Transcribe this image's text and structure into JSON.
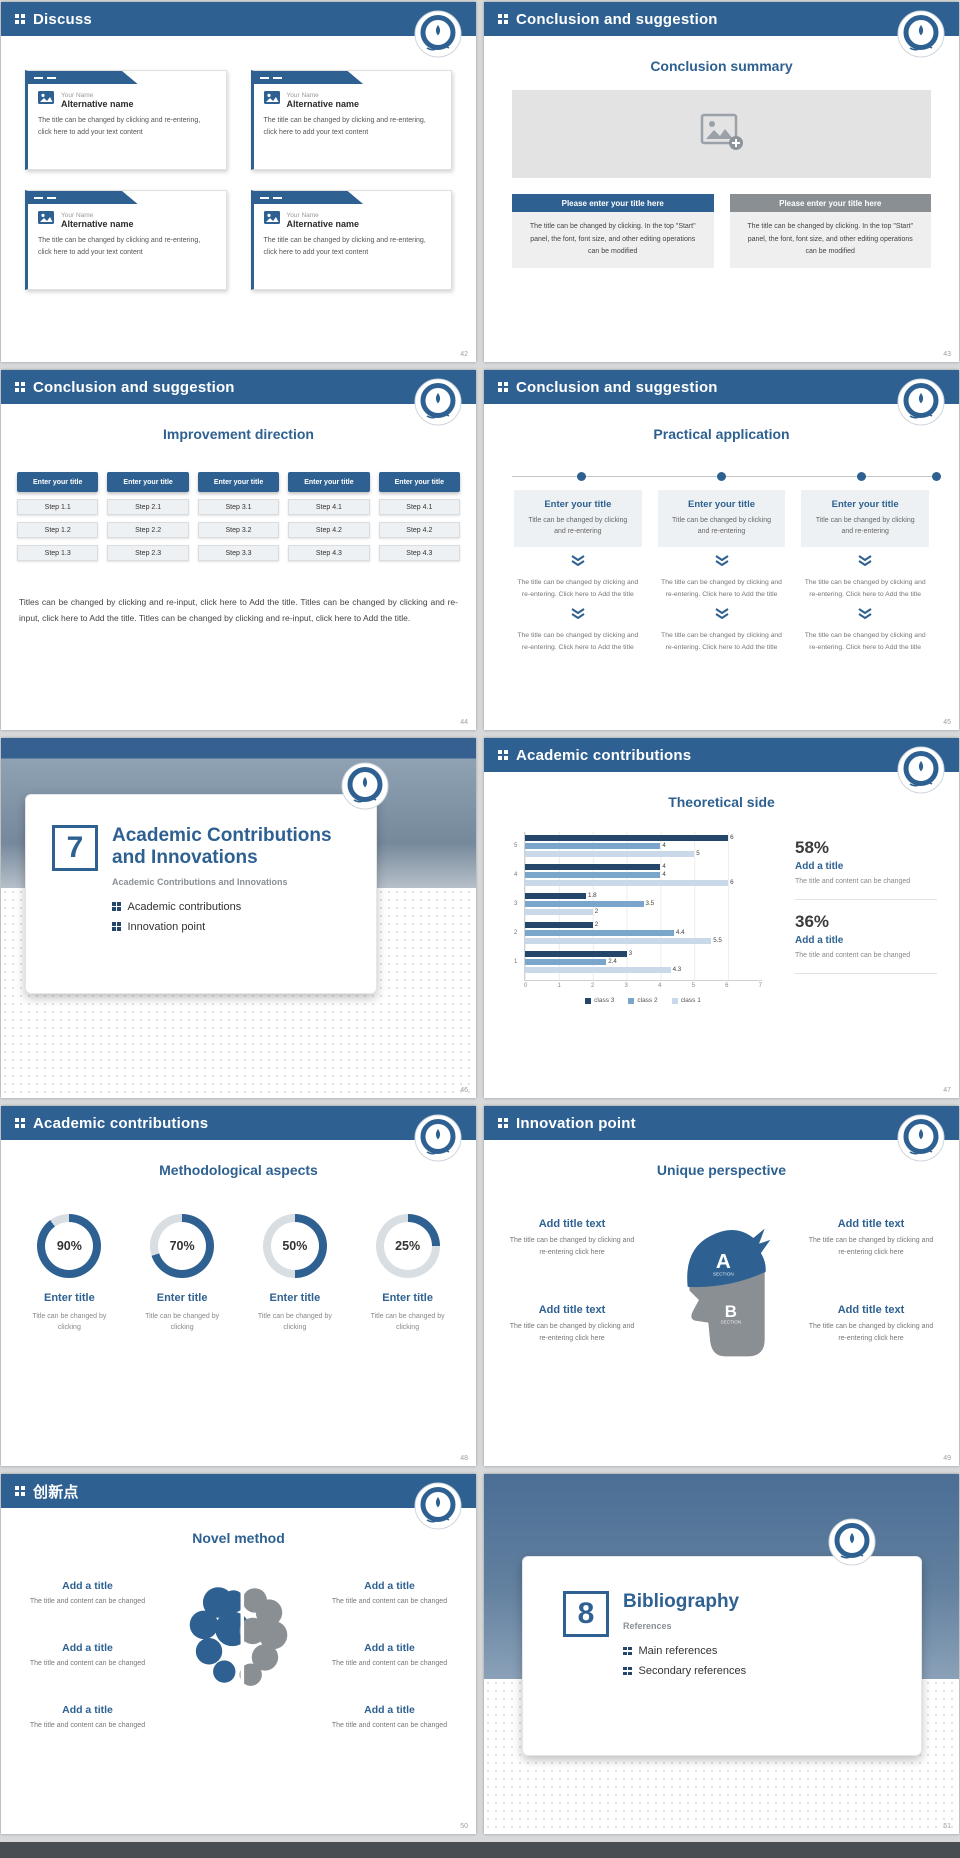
{
  "theme": {
    "primary": "#2e6191",
    "primary_dark": "#24466b",
    "gray_accent": "#8a8f94",
    "page_background": "#d7d9db"
  },
  "slides": {
    "discuss": {
      "title": "Discuss",
      "page": "42",
      "card": {
        "name_label": "Your Name",
        "name_value": "Alternative name",
        "body": "The title can be changed by clicking and re-entering, click here to add your text content"
      }
    },
    "summary": {
      "title": "Conclusion and suggestion",
      "subtitle": "Conclusion summary",
      "page": "43",
      "left_title": "Please enter your title here",
      "right_title": "Please enter your title here",
      "body": "The title can be changed by clicking. In the top \"Start\" panel, the font, font size, and other editing operations can be modified"
    },
    "improvement": {
      "title": "Conclusion and suggestion",
      "subtitle": "Improvement direction",
      "page": "44",
      "button_label": "Enter your title",
      "columns": [
        {
          "steps": [
            "Step 1.1",
            "Step 1.2",
            "Step 1.3"
          ]
        },
        {
          "steps": [
            "Step 2.1",
            "Step 2.2",
            "Step 2.3"
          ]
        },
        {
          "steps": [
            "Step 3.1",
            "Step 3.2",
            "Step 3.3"
          ]
        },
        {
          "steps": [
            "Step 4.1",
            "Step 4.2",
            "Step 4.3"
          ]
        },
        {
          "steps": [
            "Step 4.1",
            "Step 4.2",
            "Step 4.3"
          ]
        }
      ],
      "paragraph": "Titles can be changed by clicking and re-input, click here to Add the title. Titles can be changed by clicking and re-input, click here to Add the title. Titles can be changed by clicking and re-input, click here to Add the title."
    },
    "practical": {
      "title": "Conclusion and suggestion",
      "subtitle": "Practical application",
      "page": "45",
      "box_title": "Enter your title",
      "box_body": "Title can be changed by clicking and re-entering",
      "flow_text": "The title can be changed by clicking and re-entering. Click here to Add the title"
    },
    "cover7": {
      "number": "7",
      "title": "Academic Contributions and Innovations",
      "subtitle": "Academic Contributions and Innovations",
      "bullets": [
        "Academic contributions",
        "Innovation point"
      ],
      "page": "46"
    },
    "theoretical": {
      "title": "Academic contributions",
      "subtitle": "Theoretical side",
      "page": "47",
      "stats": [
        {
          "percent": "58%",
          "label": "Add a title",
          "body": "The title and content can be changed"
        },
        {
          "percent": "36%",
          "label": "Add a title",
          "body": "The title and content can be changed"
        }
      ]
    },
    "method": {
      "title": "Academic contributions",
      "subtitle": "Methodological aspects",
      "page": "48",
      "items": [
        {
          "percent": "90%",
          "value": 90,
          "label": "Enter title",
          "body": "Title can be changed by clicking"
        },
        {
          "percent": "70%",
          "value": 70,
          "label": "Enter title",
          "body": "Title can be changed by clicking"
        },
        {
          "percent": "50%",
          "value": 50,
          "label": "Enter title",
          "body": "Title can be changed by clicking"
        },
        {
          "percent": "25%",
          "value": 25,
          "label": "Enter title",
          "body": "Title can be changed by clicking"
        }
      ]
    },
    "unique": {
      "title": "Innovation point",
      "subtitle": "Unique perspective",
      "page": "49",
      "section_a": "A",
      "section_b": "B",
      "section_word": "SECTION",
      "block": {
        "label": "Add title text",
        "body": "The title can be changed by clicking and re-entering click here"
      }
    },
    "novel": {
      "title": "创新点",
      "subtitle": "Novel method",
      "page": "50",
      "block": {
        "label": "Add a title",
        "body": "The title and content can be changed"
      }
    },
    "cover8": {
      "number": "8",
      "title": "Bibliography",
      "subtitle": "References",
      "bullets": [
        "Main references",
        "Secondary references"
      ],
      "page": "51"
    }
  },
  "chart_data": [
    {
      "type": "bar",
      "title": "Theoretical side",
      "orientation": "horizontal",
      "categories": [
        "5",
        "4",
        "3",
        "2",
        "1"
      ],
      "series": [
        {
          "name": "class 3",
          "color": "#24466b",
          "values": [
            6,
            4,
            1.8,
            2,
            3
          ]
        },
        {
          "name": "class 2",
          "color": "#7aa6cc",
          "values": [
            4,
            4,
            3.5,
            4.4,
            2.4
          ]
        },
        {
          "name": "class 1",
          "color": "#c9d9ea",
          "values": [
            5,
            6,
            2,
            5.5,
            4.3
          ]
        }
      ],
      "xlim": [
        0,
        7
      ],
      "x_ticks": [
        "0",
        "1",
        "2",
        "3",
        "4",
        "5",
        "6",
        "7"
      ],
      "grid": true,
      "legend_position": "bottom"
    },
    {
      "type": "pie",
      "title": "Methodological aspects donut set",
      "labels": [
        "Enter title",
        "Enter title",
        "Enter title",
        "Enter title"
      ],
      "values": [
        90,
        70,
        50,
        25
      ],
      "unit": "%"
    }
  ]
}
